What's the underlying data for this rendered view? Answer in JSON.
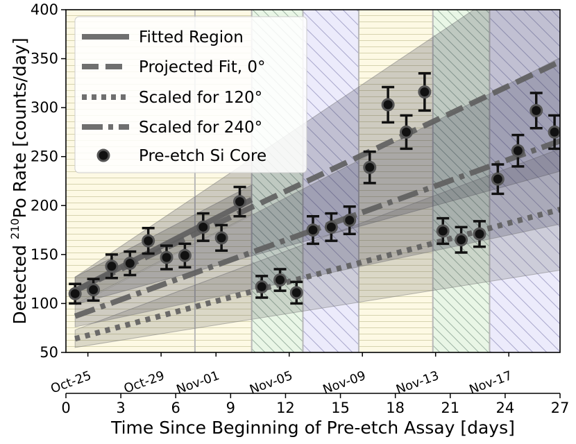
{
  "chart_data": {
    "type": "scatter",
    "xlabel": "Time Since Beginning of Pre-etch Assay [days]",
    "ylabel_prefix": "Detected ",
    "ylabel_superscript": "210",
    "ylabel_suffix": "Po Rate [counts/day]",
    "xlim": [
      0,
      27
    ],
    "ylim": [
      50,
      400
    ],
    "x_ticks": [
      "0",
      "3",
      "6",
      "9",
      "12",
      "15",
      "18",
      "21",
      "24",
      "27"
    ],
    "y_ticks": [
      "50",
      "100",
      "150",
      "200",
      "250",
      "300",
      "350",
      "400"
    ],
    "date_ticks": [
      {
        "label": "Oct-25",
        "x": 1.2
      },
      {
        "label": "Oct-29",
        "x": 5.2
      },
      {
        "label": "Nov-01",
        "x": 8.2
      },
      {
        "label": "Nov-05",
        "x": 12.2
      },
      {
        "label": "Nov-09",
        "x": 16.2
      },
      {
        "label": "Nov-13",
        "x": 20.2
      },
      {
        "label": "Nov-17",
        "x": 24.2
      }
    ],
    "regions": [
      {
        "x0": 0,
        "x1": 7.05,
        "style": "0deg",
        "color": "#fdf9e4",
        "line": "#d6d3ae"
      },
      {
        "x0": 7.05,
        "x1": 10.15,
        "style": "0deg",
        "color": "#fdf9e4",
        "line": "#d6d3ae"
      },
      {
        "x0": 10.15,
        "x1": 12.95,
        "style": "120deg",
        "color": "#e9f6e6",
        "line": "#9db3a4"
      },
      {
        "x0": 12.95,
        "x1": 16,
        "style": "240deg",
        "color": "#ecebfb",
        "line": "#a9a8cc"
      },
      {
        "x0": 16,
        "x1": 20.05,
        "style": "0deg",
        "color": "#fdf9e4",
        "line": "#d6d3ae"
      },
      {
        "x0": 20.05,
        "x1": 23.15,
        "style": "120deg",
        "color": "#e9f6e6",
        "line": "#9db3a4"
      },
      {
        "x0": 23.15,
        "x1": 27,
        "style": "240deg",
        "color": "#ecebfb",
        "line": "#a9a8cc"
      }
    ],
    "fit": {
      "intercept": 108,
      "slope": 9.6,
      "x_end": 10.15
    },
    "series": [
      {
        "name": "Fitted Region",
        "style": "solid",
        "x": [
          0.5,
          10.15
        ],
        "y": [
          113,
          206
        ],
        "band": [
          14,
          15
        ]
      },
      {
        "name": "Projected Fit, 0°",
        "style": "dashed",
        "x": [
          0.5,
          27
        ],
        "y": [
          113,
          347
        ],
        "band": [
          14,
          112
        ]
      },
      {
        "name": "Scaled for 120°",
        "style": "dotted",
        "x": [
          0.5,
          27
        ],
        "y": [
          64,
          196
        ],
        "band": [
          9,
          62
        ]
      },
      {
        "name": "Scaled for 240°",
        "style": "dashdot",
        "x": [
          0.5,
          27
        ],
        "y": [
          87,
          266
        ],
        "band": [
          11,
          85
        ]
      }
    ],
    "points": {
      "name": "Pre-etch Si Core",
      "x": [
        0.5,
        1.5,
        2.5,
        3.5,
        4.5,
        5.5,
        6.5,
        7.5,
        8.5,
        9.5,
        10.7,
        11.7,
        12.6,
        13.5,
        14.5,
        15.5,
        16.6,
        17.6,
        18.6,
        19.6,
        20.6,
        21.6,
        22.6,
        23.6,
        24.7,
        25.7,
        26.7
      ],
      "y": [
        110,
        114,
        138,
        141,
        164,
        147,
        149,
        178,
        167,
        204,
        117,
        124,
        111,
        175,
        178,
        185,
        239,
        303,
        275,
        316,
        174,
        165,
        171,
        227,
        256,
        297,
        275
      ],
      "err": [
        10,
        11,
        12,
        12,
        13,
        12,
        12,
        14,
        13,
        15,
        11,
        11,
        11,
        14,
        14,
        14,
        16,
        18,
        17,
        19,
        13,
        13,
        13,
        15,
        16,
        18,
        17
      ]
    }
  }
}
